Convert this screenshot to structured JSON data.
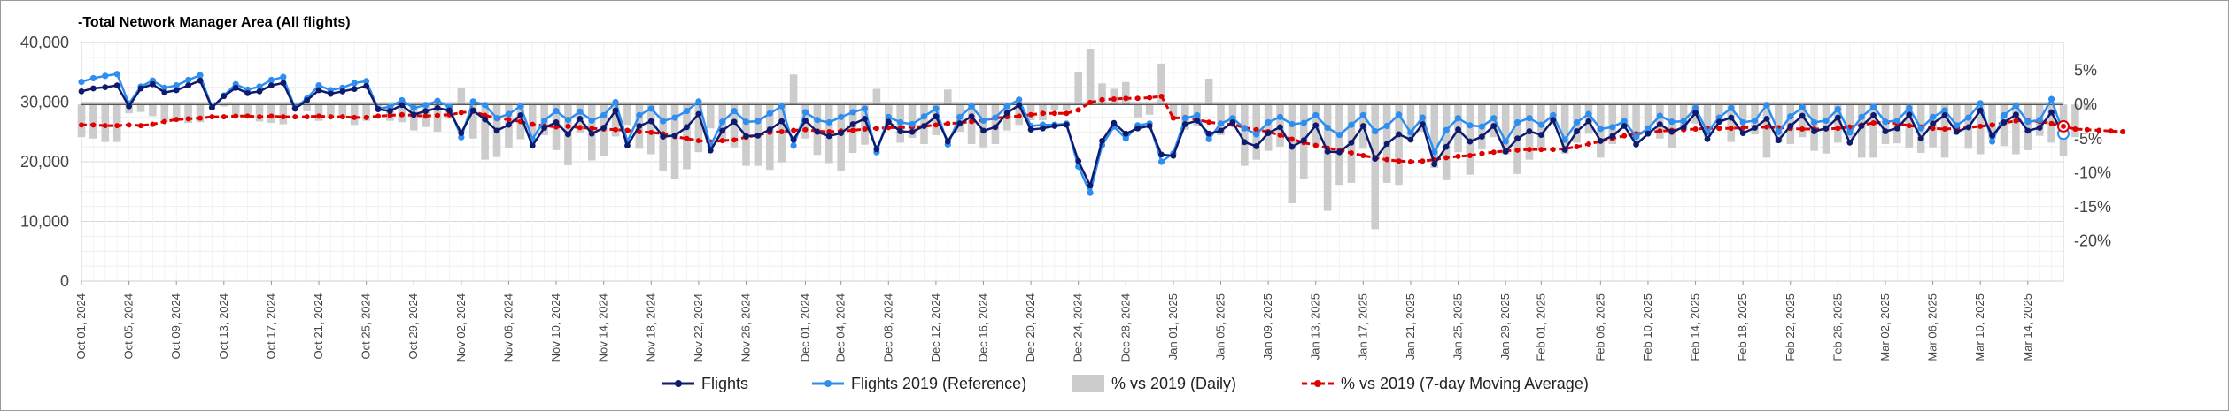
{
  "title": "-Total Network Manager Area (All flights)",
  "colors": {
    "flights": "#0d1a6e",
    "flights_2019": "#2e8ef0",
    "pct_daily": "#cccccc",
    "pct_ma": "#e00000",
    "grid": "#e6e6e6",
    "zero_line": "#555555"
  },
  "chart_data": {
    "type": "line",
    "title": "-Total Network Manager Area (All flights)",
    "start_date": "2024-10-01",
    "x_tick_labels": [
      "Oct 01, 2024",
      "Oct 05, 2024",
      "Oct 09, 2024",
      "Oct 13, 2024",
      "Oct 17, 2024",
      "Oct 21, 2024",
      "Oct 25, 2024",
      "Oct 29, 2024",
      "Nov 02, 2024",
      "Nov 06, 2024",
      "Nov 10, 2024",
      "Nov 14, 2024",
      "Nov 18, 2024",
      "Nov 22, 2024",
      "Nov 26, 2024",
      "Dec 01, 2024",
      "Dec 04, 2024",
      "Dec 08, 2024",
      "Dec 12, 2024",
      "Dec 16, 2024",
      "Dec 20, 2024",
      "Dec 24, 2024",
      "Dec 28, 2024",
      "Jan 01, 2025",
      "Jan 05, 2025",
      "Jan 09, 2025",
      "Jan 13, 2025",
      "Jan 17, 2025",
      "Jan 21, 2025",
      "Jan 25, 2025",
      "Jan 29, 2025",
      "Feb 01, 2025",
      "Feb 06, 2025",
      "Feb 10, 2025",
      "Feb 14, 2025",
      "Feb 18, 2025",
      "Feb 22, 2025",
      "Feb 26, 2025",
      "Mar 02, 2025",
      "Mar 06, 2025",
      "Mar 10, 2025",
      "Mar 14, 2025"
    ],
    "x_tick_days": [
      0,
      4,
      8,
      12,
      16,
      20,
      24,
      28,
      32,
      36,
      40,
      44,
      48,
      52,
      56,
      61,
      64,
      68,
      72,
      76,
      80,
      84,
      88,
      92,
      96,
      100,
      104,
      108,
      112,
      116,
      120,
      123,
      128,
      132,
      136,
      140,
      144,
      148,
      152,
      156,
      160,
      164
    ],
    "y_left": {
      "ticks": [
        0,
        10000,
        20000,
        30000,
        40000
      ],
      "tick_labels": [
        "0",
        "10,000",
        "20,000",
        "30,000",
        "40,000"
      ],
      "ylim": [
        0,
        40000
      ]
    },
    "y_right": {
      "ticks": [
        5,
        0,
        -5,
        -10,
        -15,
        -20
      ],
      "tick_labels": [
        "5%",
        "0%",
        "-5%",
        "-10%",
        "-15%",
        "-20%"
      ],
      "ylim": [
        -25.9,
        9.1
      ]
    },
    "grid": true,
    "legend_position": "bottom",
    "series": [
      {
        "name": "Flights",
        "axis": "left",
        "style": "line-dots",
        "values": [
          31800,
          32300,
          32500,
          32800,
          29300,
          32300,
          33000,
          31600,
          32000,
          32800,
          33600,
          29100,
          31000,
          32400,
          31500,
          31800,
          32800,
          33200,
          28900,
          30300,
          32000,
          31400,
          31800,
          32200,
          32700,
          28800,
          28500,
          29500,
          27900,
          28500,
          29000,
          28600,
          24800,
          28600,
          27100,
          25200,
          26200,
          27800,
          22700,
          25700,
          26600,
          24600,
          27200,
          24700,
          25700,
          28600,
          22700,
          26000,
          26800,
          24200,
          24400,
          25800,
          28000,
          21900,
          25200,
          26700,
          24300,
          24400,
          25400,
          26800,
          23700,
          26900,
          25000,
          24300,
          24800,
          26300,
          27200,
          22100,
          26700,
          25100,
          25000,
          26000,
          27600,
          23400,
          26400,
          27600,
          25200,
          25800,
          28200,
          29500,
          25400,
          25600,
          26000,
          26200,
          20100,
          16000,
          23500,
          26500,
          24700,
          25600,
          26000,
          21200,
          21000,
          26300,
          26900,
          24700,
          25200,
          26600,
          23300,
          22600,
          24800,
          25800,
          22500,
          23600,
          26100,
          21700,
          21600,
          23200,
          26000,
          20500,
          23000,
          24600,
          23700,
          26300,
          19600,
          22500,
          25400,
          23400,
          24200,
          26000,
          21700,
          23900,
          25100,
          24500,
          27000,
          22000,
          25100,
          26800,
          23500,
          24300,
          26000,
          22900,
          24700,
          26300,
          25000,
          25800,
          28200,
          23800,
          26700,
          27400,
          24800,
          25700,
          27200,
          23600,
          26000,
          27700,
          25100,
          25600,
          27400,
          23200,
          26000,
          27800,
          25100,
          25600,
          27900,
          23900,
          26400,
          27800,
          25000,
          25800,
          28600,
          24400,
          26600,
          27900,
          25200,
          25700,
          28300,
          24500
        ]
      },
      {
        "name": "Flights 2019 (Reference)",
        "axis": "left",
        "style": "line-dots",
        "values": [
          33400,
          34000,
          34400,
          34700,
          29700,
          32600,
          33600,
          32400,
          32800,
          33700,
          34500,
          29100,
          31100,
          33000,
          32100,
          32600,
          33700,
          34200,
          29000,
          30600,
          32800,
          32000,
          32400,
          33200,
          33500,
          28900,
          29200,
          30300,
          29000,
          29500,
          30200,
          29200,
          24100,
          30100,
          29500,
          27300,
          28000,
          29300,
          23800,
          26900,
          28500,
          27000,
          28400,
          26900,
          27800,
          30000,
          23400,
          27800,
          28900,
          26800,
          27400,
          28500,
          30100,
          22700,
          26700,
          28500,
          26700,
          26800,
          28100,
          29300,
          22700,
          28300,
          27000,
          26600,
          27500,
          28300,
          28900,
          21600,
          27500,
          26600,
          26300,
          27600,
          28900,
          22900,
          27500,
          29300,
          26900,
          27400,
          29300,
          30400,
          26000,
          26200,
          26200,
          26400,
          19200,
          14800,
          22800,
          25900,
          23900,
          26100,
          26400,
          20000,
          21400,
          27300,
          27800,
          23800,
          26400,
          27300,
          25600,
          24600,
          26600,
          27500,
          26300,
          26500,
          27800,
          25700,
          24500,
          26200,
          27800,
          25100,
          26000,
          27900,
          24900,
          27400,
          21600,
          25300,
          27300,
          26100,
          25900,
          27300,
          23400,
          26600,
          27300,
          26200,
          27800,
          23700,
          26600,
          28000,
          25500,
          25800,
          26800,
          24200,
          25600,
          27700,
          26700,
          26800,
          29000,
          25000,
          27400,
          29000,
          26600,
          26900,
          29500,
          25000,
          27600,
          29100,
          26600,
          26900,
          28800,
          24900,
          27500,
          29200,
          26700,
          26900,
          29000,
          25600,
          27500,
          28600,
          26100,
          27400,
          29800,
          23400,
          27800,
          29400,
          26700,
          27000,
          30500,
          24700
        ]
      },
      {
        "name": "% vs 2019 (Daily)",
        "axis": "right",
        "style": "bar",
        "values": [
          -4.8,
          -5.0,
          -5.5,
          -5.5,
          -1.3,
          -1.1,
          -1.7,
          -2.5,
          -2.4,
          -2.7,
          -2.6,
          0.0,
          -0.3,
          -1.8,
          -1.9,
          -2.5,
          -2.7,
          -2.9,
          -0.3,
          -1.0,
          -2.4,
          -1.9,
          -1.9,
          -3.0,
          -2.4,
          -0.3,
          -2.4,
          -2.6,
          -3.8,
          -3.3,
          -4.0,
          -2.1,
          2.4,
          -5.0,
          -8.1,
          -7.7,
          -6.4,
          -5.1,
          -4.6,
          -4.5,
          -6.7,
          -8.9,
          -4.2,
          -8.2,
          -7.6,
          -4.7,
          -3.0,
          -6.5,
          -7.3,
          -9.7,
          -10.9,
          -9.5,
          -7.0,
          -3.5,
          -5.6,
          -6.3,
          -9.0,
          -9.0,
          -9.6,
          -8.5,
          4.4,
          -5.0,
          -7.4,
          -8.6,
          -9.8,
          -7.1,
          -5.9,
          2.3,
          -2.9,
          -5.6,
          -4.9,
          -5.8,
          -4.5,
          2.2,
          -4.0,
          -5.8,
          -6.3,
          -5.8,
          -3.8,
          -3.0,
          -2.3,
          -2.3,
          -0.8,
          -0.8,
          4.7,
          8.1,
          3.1,
          2.3,
          3.3,
          -1.9,
          -1.5,
          6.0,
          -1.9,
          -3.7,
          -3.2,
          3.8,
          -4.5,
          -2.6,
          -9.0,
          -8.1,
          -6.8,
          -6.2,
          -14.5,
          -10.9,
          -6.1,
          -15.6,
          -11.8,
          -11.5,
          -6.5,
          -18.3,
          -11.5,
          -11.8,
          -4.8,
          -4.0,
          -9.3,
          -11.1,
          -7.0,
          -10.3,
          -6.6,
          -4.8,
          -7.3,
          -10.2,
          -8.1,
          -6.5,
          -2.9,
          -7.2,
          -5.6,
          -4.3,
          -7.8,
          -5.8,
          -3.0,
          -5.4,
          -3.5,
          -5.0,
          -6.4,
          -3.7,
          -2.8,
          -4.8,
          -2.6,
          -5.5,
          -2.5,
          -4.4,
          -7.8,
          -5.6,
          -5.8,
          -4.8,
          -6.8,
          -7.2,
          -5.6,
          -5.0,
          -7.8,
          -7.8,
          -5.8,
          -5.7,
          -6.4,
          -7.1,
          -6.3,
          -7.8,
          -4.2,
          -6.5,
          -7.3,
          -5.1,
          -6.1,
          -7.3,
          -6.7,
          -4.6,
          -5.6,
          -7.5,
          -4.8,
          -0.8
        ]
      },
      {
        "name": "% vs 2019 (7-day Moving Average)",
        "axis": "right",
        "style": "dashed-dots",
        "values": [
          -3.0,
          -3.0,
          -3.1,
          -3.1,
          -3.0,
          -3.1,
          -2.9,
          -2.5,
          -2.2,
          -2.1,
          -2.0,
          -1.8,
          -1.8,
          -1.7,
          -1.7,
          -1.8,
          -1.7,
          -1.8,
          -1.8,
          -1.8,
          -1.7,
          -1.8,
          -1.8,
          -1.9,
          -1.9,
          -1.7,
          -1.6,
          -1.5,
          -1.6,
          -1.7,
          -1.6,
          -1.5,
          -1.2,
          -1.0,
          -1.6,
          -2.0,
          -2.2,
          -2.5,
          -2.9,
          -3.1,
          -3.3,
          -3.2,
          -3.4,
          -3.5,
          -3.6,
          -3.7,
          -3.8,
          -4.0,
          -4.1,
          -4.3,
          -4.7,
          -5.0,
          -5.3,
          -5.5,
          -5.3,
          -5.2,
          -4.8,
          -4.5,
          -4.1,
          -4.0,
          -3.8,
          -3.7,
          -3.9,
          -4.0,
          -3.9,
          -3.8,
          -3.6,
          -3.5,
          -3.4,
          -3.4,
          -3.3,
          -3.2,
          -3.0,
          -2.8,
          -2.7,
          -2.5,
          -2.3,
          -2.0,
          -1.8,
          -1.7,
          -1.5,
          -1.3,
          -1.3,
          -1.3,
          -0.8,
          0.3,
          0.7,
          0.8,
          0.9,
          0.9,
          1.0,
          1.2,
          -2.0,
          -1.9,
          -2.2,
          -2.6,
          -2.8,
          -2.9,
          -3.4,
          -3.7,
          -4.0,
          -4.5,
          -5.1,
          -5.6,
          -6.0,
          -6.4,
          -6.7,
          -7.1,
          -7.5,
          -7.8,
          -8.1,
          -8.3,
          -8.4,
          -8.3,
          -8.1,
          -7.8,
          -7.6,
          -7.5,
          -7.2,
          -7.0,
          -6.8,
          -6.7,
          -6.6,
          -6.6,
          -6.6,
          -6.5,
          -6.2,
          -5.8,
          -5.4,
          -5.0,
          -4.6,
          -4.3,
          -4.1,
          -3.9,
          -3.8,
          -3.7,
          -3.6,
          -3.5,
          -3.5,
          -3.5,
          -3.4,
          -3.4,
          -3.3,
          -3.4,
          -3.5,
          -3.6,
          -3.6,
          -3.6,
          -3.5,
          -3.3,
          -3.0,
          -2.7,
          -2.6,
          -2.8,
          -3.1,
          -3.3,
          -3.5,
          -3.6,
          -3.5,
          -3.4,
          -3.2,
          -3.0,
          -2.7,
          -2.4,
          -2.3,
          -2.5,
          -2.8,
          -3.2,
          -3.6,
          -3.7,
          -3.8,
          -3.9,
          -4.0
        ]
      }
    ]
  },
  "legend": [
    {
      "label": "Flights",
      "key": "flights"
    },
    {
      "label": "Flights 2019 (Reference)",
      "key": "flights_2019"
    },
    {
      "label": "% vs 2019 (Daily)",
      "key": "pct_daily"
    },
    {
      "label": "% vs 2019 (7-day Moving Average)",
      "key": "pct_ma"
    }
  ]
}
